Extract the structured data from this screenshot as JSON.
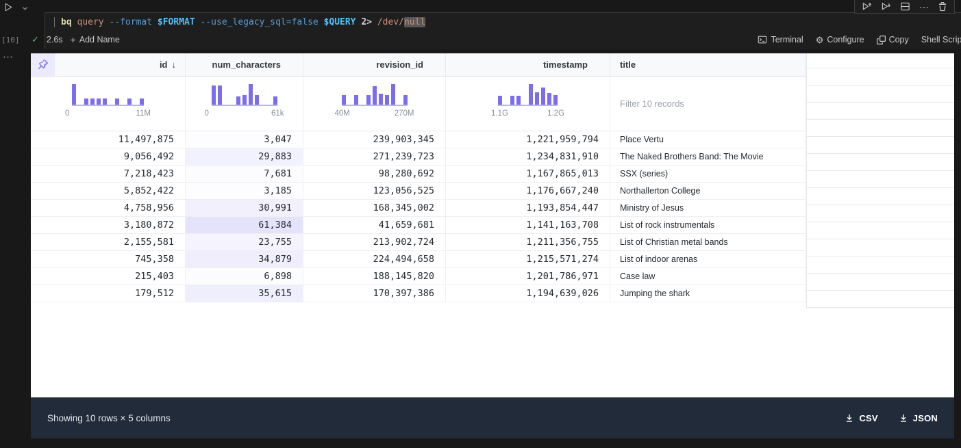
{
  "code_cell": {
    "execution_count": "[10]",
    "duration": "2.6s",
    "add_name_label": "Add Name",
    "command_tokens": [
      {
        "text": "bq",
        "style": "cmd"
      },
      {
        "text": " query",
        "style": "arg"
      },
      {
        "text": " --format",
        "style": "flag"
      },
      {
        "text": " $FORMAT",
        "style": "var"
      },
      {
        "text": " --use_legacy_sql=false",
        "style": "flag"
      },
      {
        "text": " $QUERY",
        "style": "var"
      },
      {
        "text": " 2>",
        "style": "op"
      },
      {
        "text": " /dev/",
        "style": "arg"
      },
      {
        "text": "null",
        "style": "arg",
        "highlighted": true
      }
    ],
    "cell_toolbar_icons": [
      "execute-above-icon",
      "execute-below-icon",
      "split-cell-icon",
      "more-actions-icon",
      "delete-cell-icon"
    ],
    "actions": {
      "terminal": "Terminal",
      "configure": "Configure",
      "copy": "Copy",
      "language": "Shell Script"
    }
  },
  "table": {
    "pin_icon": "pin-icon",
    "columns": [
      {
        "name": "id",
        "align": "right",
        "sort": "desc",
        "histogram": {
          "min_label": "0",
          "max_label": "11M",
          "bars": [
            1,
            0,
            0.3,
            0.3,
            0.3,
            0.3,
            0,
            0.3,
            0,
            0.3,
            0,
            0.3
          ]
        }
      },
      {
        "name": "num_characters",
        "align": "right",
        "value_bars": true,
        "value_bar_max": 61384,
        "histogram": {
          "min_label": "0",
          "max_label": "61k",
          "bars": [
            0.92,
            0.92,
            0,
            0,
            0.4,
            0.48,
            1,
            0.48,
            0,
            0,
            0.4
          ]
        }
      },
      {
        "name": "revision_id",
        "align": "right",
        "histogram": {
          "min_label": "40M",
          "max_label": "270M",
          "bars": [
            0.45,
            0,
            0.45,
            0,
            0.45,
            0.9,
            0.52,
            0.45,
            1,
            0,
            0.45
          ]
        }
      },
      {
        "name": "timestamp",
        "align": "right",
        "histogram": {
          "min_label": "1.1G",
          "max_label": "1.2G",
          "bars": [
            0.42,
            0,
            0.42,
            0.42,
            0,
            1,
            0.6,
            0.82,
            0.55,
            0.45
          ]
        }
      },
      {
        "name": "title",
        "align": "left",
        "filter_placeholder": "Filter 10 records"
      }
    ],
    "rows": [
      [
        "11,497,875",
        "3,047",
        "239,903,345",
        "1,221,959,794",
        "Place Vertu"
      ],
      [
        "9,056,492",
        "29,883",
        "271,239,723",
        "1,234,831,910",
        "The Naked Brothers Band: The Movie"
      ],
      [
        "7,218,423",
        "7,681",
        "98,280,692",
        "1,167,865,013",
        "SSX (series)"
      ],
      [
        "5,852,422",
        "3,185",
        "123,056,525",
        "1,176,667,240",
        "Northallerton College"
      ],
      [
        "4,758,956",
        "30,991",
        "168,345,002",
        "1,193,854,447",
        "Ministry of Jesus"
      ],
      [
        "3,180,872",
        "61,384",
        "41,659,681",
        "1,141,163,708",
        "List of rock instrumentals"
      ],
      [
        "2,155,581",
        "23,755",
        "213,902,724",
        "1,211,356,755",
        "List of Christian metal bands"
      ],
      [
        "745,358",
        "34,879",
        "224,494,658",
        "1,215,571,274",
        "List of indoor arenas"
      ],
      [
        "215,403",
        "6,898",
        "188,145,820",
        "1,201,786,971",
        "Case law"
      ],
      [
        "179,512",
        "35,615",
        "170,397,386",
        "1,194,639,026",
        "Jumping the shark"
      ]
    ]
  },
  "footer": {
    "summary": "Showing 10 rows × 5 columns",
    "downloads": [
      {
        "label": "CSV",
        "icon": "download-icon"
      },
      {
        "label": "JSON",
        "icon": "download-icon"
      }
    ]
  },
  "colors": {
    "accent": "#7b6cf0",
    "header_bg": "#f8f9fa",
    "footer_bg": "#212b3a",
    "check": "#62c073",
    "token_highlight": "#575757"
  }
}
